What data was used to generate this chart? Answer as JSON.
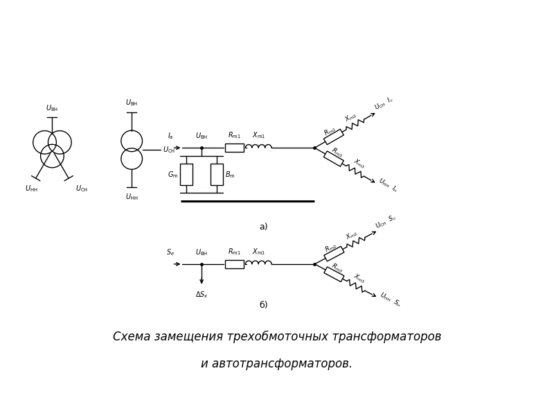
{
  "title_line1": "Схема замещения трехобмоточных трансформаторов",
  "title_line2": "и автотрансформаторов.",
  "label_a": "а)",
  "label_b": "б)",
  "bg_color": "#ffffff",
  "line_color": "#000000",
  "font_size_title": 12,
  "font_size_label": 10
}
